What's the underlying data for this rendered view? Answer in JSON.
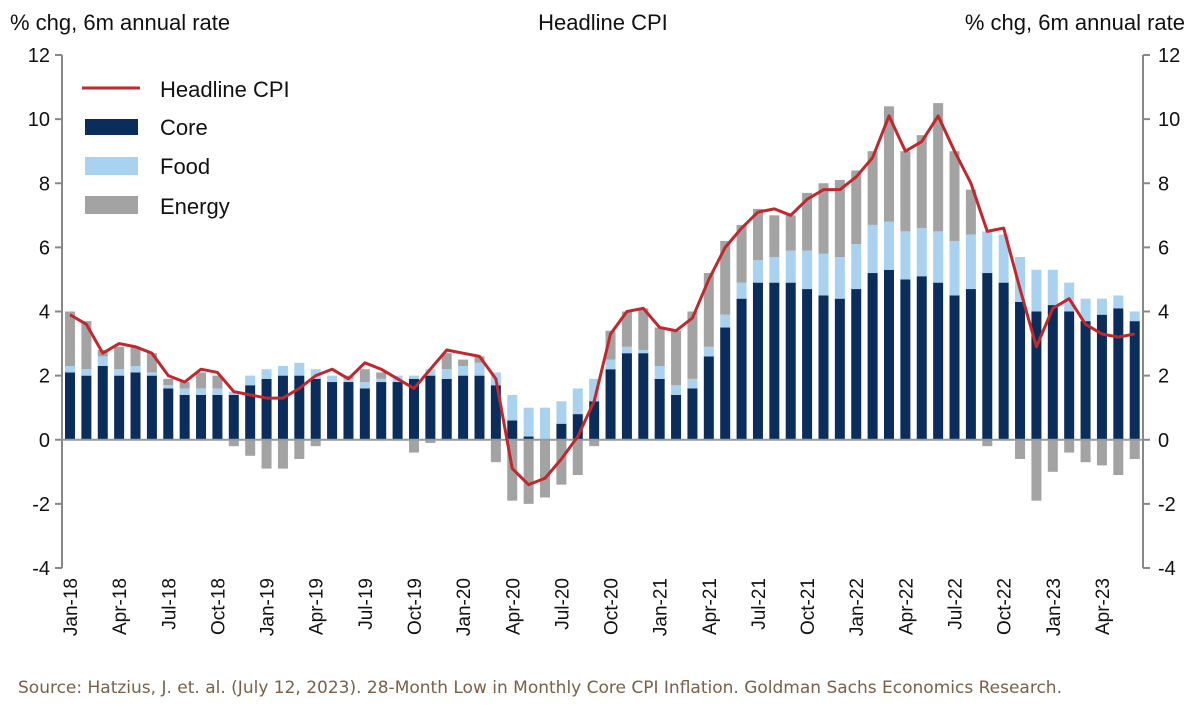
{
  "chart_data": {
    "type": "bar",
    "stacked": true,
    "title": "Headline CPI",
    "ylabel_left": "% chg, 6m annual rate",
    "ylabel_right": "% chg, 6m annual rate",
    "ylim": [
      -4,
      12
    ],
    "yticks": [
      -4,
      -2,
      0,
      2,
      4,
      6,
      8,
      10,
      12
    ],
    "grid": false,
    "legend_position": "top-left",
    "categories": [
      "Jan-18",
      "Feb-18",
      "Mar-18",
      "Apr-18",
      "May-18",
      "Jun-18",
      "Jul-18",
      "Aug-18",
      "Sep-18",
      "Oct-18",
      "Nov-18",
      "Dec-18",
      "Jan-19",
      "Feb-19",
      "Mar-19",
      "Apr-19",
      "May-19",
      "Jun-19",
      "Jul-19",
      "Aug-19",
      "Sep-19",
      "Oct-19",
      "Nov-19",
      "Dec-19",
      "Jan-20",
      "Feb-20",
      "Mar-20",
      "Apr-20",
      "May-20",
      "Jun-20",
      "Jul-20",
      "Aug-20",
      "Sep-20",
      "Oct-20",
      "Nov-20",
      "Dec-20",
      "Jan-21",
      "Feb-21",
      "Mar-21",
      "Apr-21",
      "May-21",
      "Jun-21",
      "Jul-21",
      "Aug-21",
      "Sep-21",
      "Oct-21",
      "Nov-21",
      "Dec-21",
      "Jan-22",
      "Feb-22",
      "Mar-22",
      "Apr-22",
      "May-22",
      "Jun-22",
      "Jul-22",
      "Aug-22",
      "Sep-22",
      "Oct-22",
      "Nov-22",
      "Dec-22",
      "Jan-23",
      "Feb-23",
      "Mar-23",
      "Apr-23",
      "May-23",
      "Jun-23"
    ],
    "xtick_labels": [
      "Jan-18",
      "Apr-18",
      "Jul-18",
      "Oct-18",
      "Jan-19",
      "Apr-19",
      "Jul-19",
      "Oct-19",
      "Jan-20",
      "Apr-20",
      "Jul-20",
      "Oct-20",
      "Jan-21",
      "Apr-21",
      "Jul-21",
      "Oct-21",
      "Jan-22",
      "Apr-22",
      "Jul-22",
      "Oct-22",
      "Jan-23",
      "Apr-23"
    ],
    "series": [
      {
        "name": "Headline CPI",
        "kind": "line",
        "color": "#c0282d",
        "values": [
          3.9,
          3.6,
          2.7,
          3.0,
          2.9,
          2.7,
          2.0,
          1.8,
          2.2,
          2.1,
          1.5,
          1.4,
          1.3,
          1.3,
          1.6,
          2.0,
          2.2,
          1.9,
          2.4,
          2.2,
          1.9,
          1.6,
          2.2,
          2.8,
          2.7,
          2.6,
          1.9,
          -0.9,
          -1.4,
          -1.2,
          -0.6,
          0.1,
          1.2,
          3.3,
          4.0,
          4.1,
          3.5,
          3.4,
          3.8,
          5.0,
          6.0,
          6.6,
          7.1,
          7.2,
          7.0,
          7.5,
          7.8,
          7.8,
          8.2,
          8.8,
          10.1,
          9.0,
          9.3,
          10.1,
          9.0,
          8.0,
          6.5,
          6.6,
          4.7,
          2.9,
          4.1,
          4.4,
          3.6,
          3.3,
          3.2,
          3.3
        ]
      },
      {
        "name": "Core",
        "kind": "bar",
        "color": "#0b2d5b",
        "values": [
          2.1,
          2.0,
          2.3,
          2.0,
          2.1,
          2.0,
          1.6,
          1.4,
          1.4,
          1.4,
          1.4,
          1.7,
          1.9,
          2.0,
          2.0,
          1.9,
          1.8,
          1.8,
          1.6,
          1.8,
          1.8,
          1.9,
          2.0,
          1.9,
          2.0,
          2.0,
          1.7,
          0.6,
          0.1,
          0.0,
          0.5,
          0.8,
          1.2,
          2.2,
          2.7,
          2.7,
          1.9,
          1.4,
          1.6,
          2.6,
          3.5,
          4.4,
          4.9,
          4.9,
          4.9,
          4.7,
          4.5,
          4.4,
          4.7,
          5.2,
          5.3,
          5.0,
          5.1,
          4.9,
          4.5,
          4.7,
          5.2,
          4.9,
          4.3,
          4.0,
          4.2,
          4.0,
          3.7,
          3.9,
          4.1,
          3.7
        ]
      },
      {
        "name": "Food",
        "kind": "bar",
        "color": "#a9d2f0",
        "values": [
          0.2,
          0.2,
          0.3,
          0.2,
          0.2,
          0.1,
          0.1,
          0.2,
          0.2,
          0.2,
          0.1,
          0.3,
          0.3,
          0.3,
          0.4,
          0.3,
          0.2,
          0.1,
          0.2,
          0.1,
          0.2,
          0.1,
          0.2,
          0.3,
          0.3,
          0.4,
          0.4,
          0.8,
          0.9,
          1.0,
          0.7,
          0.8,
          0.7,
          0.3,
          0.2,
          0.1,
          0.4,
          0.3,
          0.3,
          0.3,
          0.4,
          0.5,
          0.7,
          0.8,
          1.0,
          1.2,
          1.3,
          1.3,
          1.4,
          1.5,
          1.5,
          1.5,
          1.5,
          1.6,
          1.7,
          1.7,
          1.3,
          1.5,
          1.4,
          1.3,
          1.1,
          0.9,
          0.7,
          0.5,
          0.4,
          0.3
        ]
      },
      {
        "name": "Energy",
        "kind": "bar",
        "color": "#a3a3a3",
        "values": [
          1.7,
          1.5,
          0.2,
          0.7,
          0.6,
          0.6,
          0.2,
          0.2,
          0.5,
          0.4,
          -0.2,
          -0.5,
          -0.9,
          -0.9,
          -0.6,
          -0.2,
          0.0,
          0.1,
          0.4,
          0.2,
          0.0,
          -0.4,
          -0.1,
          0.5,
          0.2,
          0.2,
          -0.7,
          -1.9,
          -2.0,
          -1.8,
          -1.4,
          -1.1,
          -0.2,
          0.9,
          1.1,
          1.3,
          1.2,
          1.7,
          2.1,
          2.3,
          2.3,
          1.8,
          1.6,
          1.3,
          1.1,
          1.8,
          2.2,
          2.4,
          2.3,
          2.3,
          3.6,
          2.5,
          2.9,
          4.0,
          2.8,
          1.4,
          -0.2,
          0.0,
          -0.6,
          -1.9,
          -1.0,
          -0.4,
          -0.7,
          -0.8,
          -1.1,
          -0.6
        ]
      }
    ]
  },
  "source": "Source: Hatzius, J. et. al. (July 12, 2023). 28-Month Low in Monthly Core CPI Inflation. Goldman Sachs Economics Research."
}
